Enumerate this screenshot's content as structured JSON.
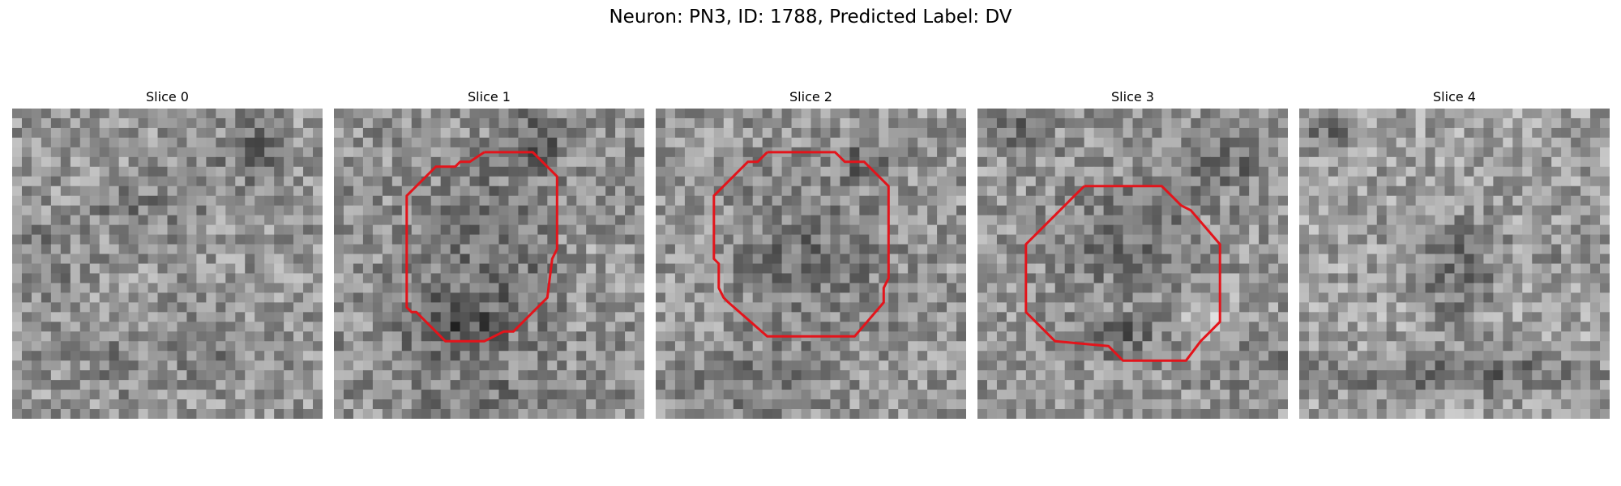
{
  "figure": {
    "title": "Neuron: PN3, ID: 1788, Predicted Label: DV"
  },
  "colors": {
    "contour": "#e3141b"
  },
  "slices": [
    {
      "title": "Slice 0",
      "has_contour": false
    },
    {
      "title": "Slice 1",
      "has_contour": true
    },
    {
      "title": "Slice 2",
      "has_contour": true
    },
    {
      "title": "Slice 3",
      "has_contour": true
    },
    {
      "title": "Slice 4",
      "has_contour": false
    }
  ]
}
